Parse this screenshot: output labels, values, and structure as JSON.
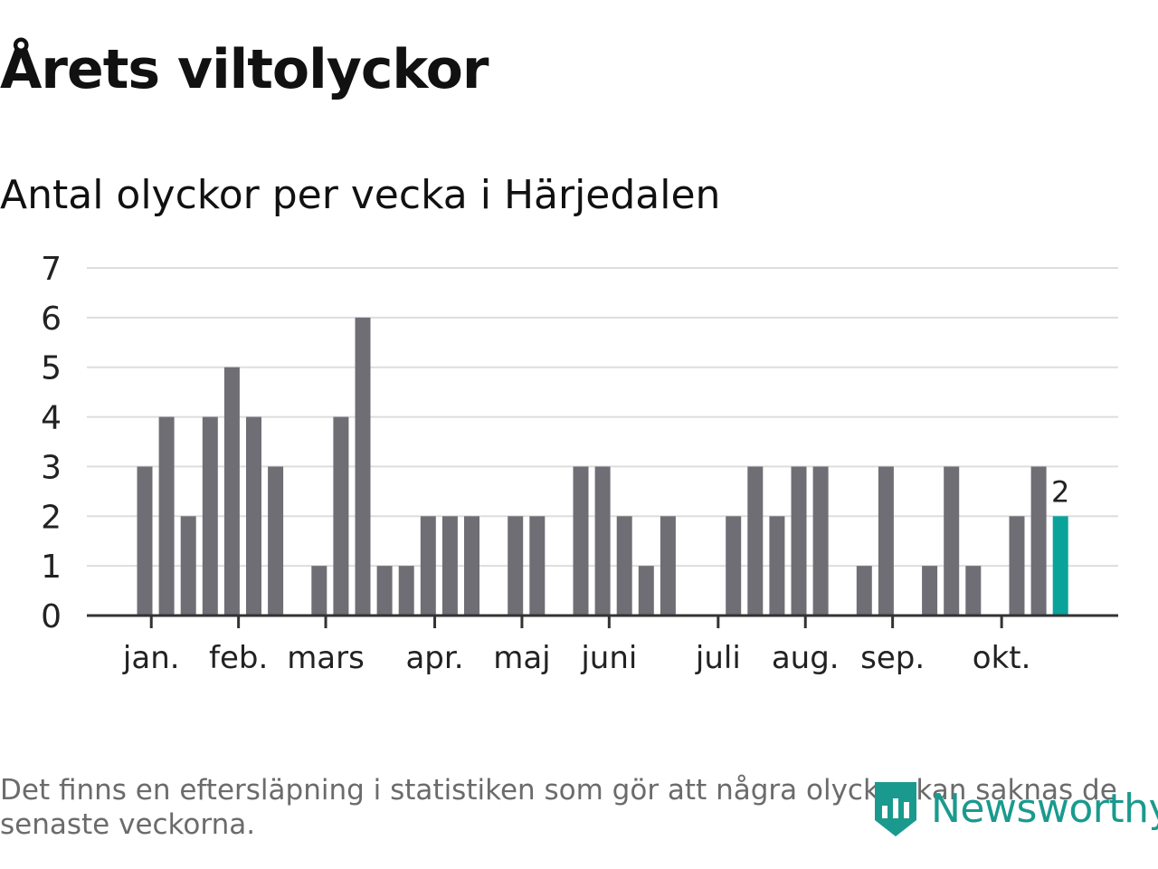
{
  "title": "Årets viltolyckor",
  "subtitle": "Antal olyckor per vecka i Härjedalen",
  "footnote": "Det finns en eftersläpning i statistiken som gör att några olyckor kan saknas de senaste veckorna.",
  "brand": {
    "name": "Newsworthy",
    "icon": "newsworthy-logo-icon",
    "color": "#1a9a8e"
  },
  "colors": {
    "bar": "#6f6e75",
    "highlight": "#0aa39a",
    "grid": "#dddddd",
    "axis": "#333333"
  },
  "chart_data": {
    "type": "bar",
    "title": "Antal olyckor per vecka i Härjedalen",
    "xlabel": "",
    "ylabel": "",
    "ylim": [
      0,
      7
    ],
    "yticks": [
      0,
      1,
      2,
      3,
      4,
      5,
      6,
      7
    ],
    "grid": true,
    "weeks": [
      1,
      2,
      3,
      4,
      5,
      6,
      7,
      8,
      9,
      10,
      11,
      12,
      13,
      14,
      15,
      16,
      17,
      18,
      19,
      20,
      21,
      22,
      23,
      24,
      25,
      26,
      27,
      28,
      29,
      30,
      31,
      32,
      33,
      34,
      35,
      36,
      37,
      38,
      39,
      40,
      41,
      42,
      43
    ],
    "values": [
      3,
      4,
      2,
      4,
      5,
      4,
      3,
      0,
      1,
      4,
      6,
      1,
      1,
      2,
      2,
      2,
      0,
      2,
      2,
      0,
      3,
      3,
      2,
      1,
      2,
      0,
      0,
      2,
      3,
      2,
      3,
      3,
      0,
      1,
      3,
      0,
      1,
      3,
      1,
      0,
      2,
      3,
      2
    ],
    "month_labels": [
      {
        "label": "jan.",
        "week": 1.3
      },
      {
        "label": "feb.",
        "week": 5.3
      },
      {
        "label": "mars",
        "week": 9.3
      },
      {
        "label": "apr.",
        "week": 14.3
      },
      {
        "label": "maj",
        "week": 18.3
      },
      {
        "label": "juni",
        "week": 22.3
      },
      {
        "label": "juli",
        "week": 27.3
      },
      {
        "label": "aug.",
        "week": 31.3
      },
      {
        "label": "sep.",
        "week": 35.3
      },
      {
        "label": "okt.",
        "week": 40.3
      }
    ],
    "highlight": {
      "week": 43,
      "value": 2,
      "label": "2"
    }
  }
}
